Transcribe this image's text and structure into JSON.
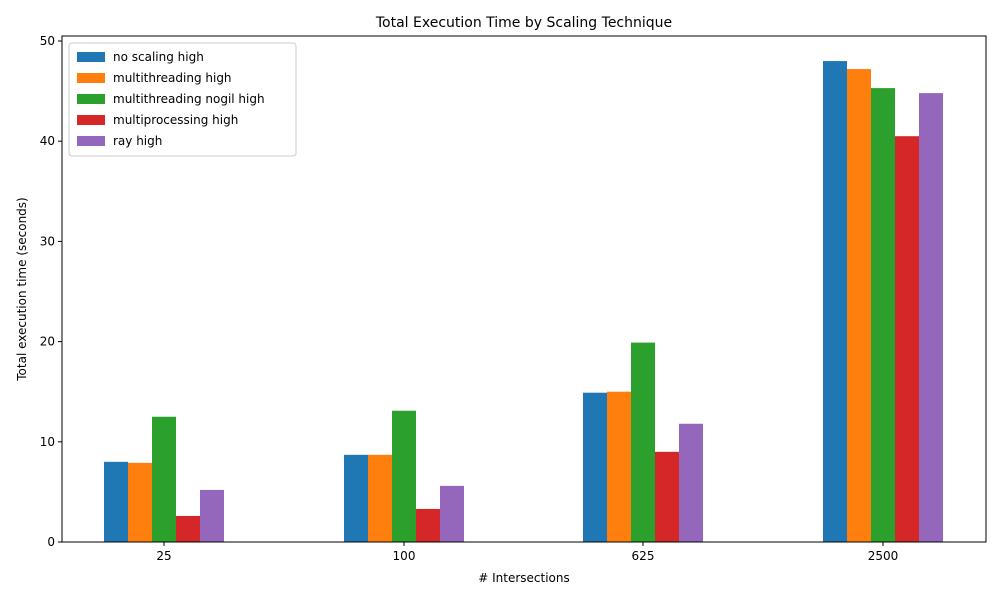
{
  "chart_data": {
    "type": "bar",
    "title": "Total Execution Time by Scaling Technique",
    "xlabel": "# Intersections",
    "ylabel": "Total execution time (seconds)",
    "categories": [
      "25",
      "100",
      "625",
      "2500"
    ],
    "ylim": [
      0,
      50.5
    ],
    "yticks": [
      0,
      10,
      20,
      30,
      40,
      50
    ],
    "grid": false,
    "legend_position": "top-left",
    "series": [
      {
        "name": "no scaling high",
        "color": "#1f77b4",
        "values": [
          8.0,
          8.7,
          14.9,
          48.0
        ]
      },
      {
        "name": "multithreading high",
        "color": "#ff7f0e",
        "values": [
          7.9,
          8.7,
          15.0,
          47.2
        ]
      },
      {
        "name": "multithreading nogil high",
        "color": "#2ca02c",
        "values": [
          12.5,
          13.1,
          19.9,
          45.3
        ]
      },
      {
        "name": "multiprocessing high",
        "color": "#d62728",
        "values": [
          2.6,
          3.3,
          9.0,
          40.5
        ]
      },
      {
        "name": "ray high",
        "color": "#9467bd",
        "values": [
          5.2,
          5.6,
          11.8,
          44.8
        ]
      }
    ]
  }
}
